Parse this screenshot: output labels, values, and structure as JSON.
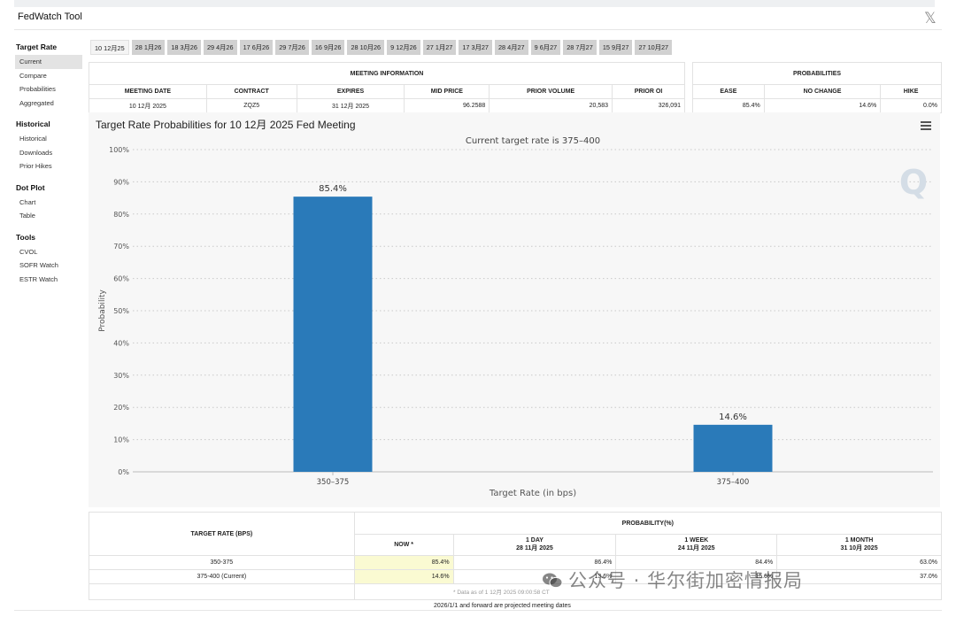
{
  "app": {
    "title": "FedWatch Tool",
    "close_icon": "x-logo-icon"
  },
  "sidebar": [
    {
      "heading": "Target Rate",
      "items": [
        {
          "label": "Current",
          "active": true
        },
        {
          "label": "Compare"
        },
        {
          "label": "Probabilities"
        },
        {
          "label": "Aggregated"
        }
      ]
    },
    {
      "heading": "Historical",
      "items": [
        {
          "label": "Historical"
        },
        {
          "label": "Downloads"
        },
        {
          "label": "Prior Hikes"
        }
      ]
    },
    {
      "heading": "Dot Plot",
      "items": [
        {
          "label": "Chart"
        },
        {
          "label": "Table"
        }
      ]
    },
    {
      "heading": "Tools",
      "items": [
        {
          "label": "CVOL"
        },
        {
          "label": "SOFR Watch"
        },
        {
          "label": "ESTR Watch"
        }
      ]
    }
  ],
  "tabs": [
    "10 12月25",
    "28 1月26",
    "18 3月26",
    "29 4月26",
    "17 6月26",
    "29 7月26",
    "16 9月26",
    "28 10月26",
    "9 12月26",
    "27 1月27",
    "17 3月27",
    "28 4月27",
    "9 6月27",
    "28 7月27",
    "15 9月27",
    "27 10月27"
  ],
  "meeting_info": {
    "section": "MEETING INFORMATION",
    "headers": [
      "MEETING DATE",
      "CONTRACT",
      "EXPIRES",
      "MID PRICE",
      "PRIOR VOLUME",
      "PRIOR OI"
    ],
    "row": [
      "10 12月 2025",
      "ZQZ5",
      "31 12月 2025",
      "96.2588",
      "20,583",
      "326,091"
    ]
  },
  "probabilities": {
    "section": "PROBABILITIES",
    "headers": [
      "EASE",
      "NO CHANGE",
      "HIKE"
    ],
    "row": [
      "85.4%",
      "14.6%",
      "0.0%"
    ]
  },
  "chart_data": {
    "type": "bar",
    "title": "Target Rate Probabilities for 10 12月 2025 Fed Meeting",
    "subtitle": "Current target rate is 375–400",
    "xlabel": "Target Rate (in bps)",
    "ylabel": "Probability",
    "categories": [
      "350–375",
      "375–400"
    ],
    "values": [
      85.4,
      14.6
    ],
    "data_labels": [
      "85.4%",
      "14.6%"
    ],
    "ylim": [
      0,
      100
    ],
    "yticks": [
      "0%",
      "10%",
      "20%",
      "30%",
      "40%",
      "50%",
      "60%",
      "70%",
      "80%",
      "90%",
      "100%"
    ],
    "grid": true,
    "bar_color": "#2a7ab9"
  },
  "bottom_table": {
    "col_header": "TARGET RATE (BPS)",
    "group_header": "PROBABILITY(%)",
    "now": "NOW *",
    "periods": [
      {
        "label": "1 DAY",
        "date": "28 11月 2025"
      },
      {
        "label": "1 WEEK",
        "date": "24 11月 2025"
      },
      {
        "label": "1 MONTH",
        "date": "31 10月 2025"
      }
    ],
    "rows": [
      {
        "rate": "350-375",
        "values": [
          "85.4%",
          "86.4%",
          "84.4%",
          "63.0%"
        ]
      },
      {
        "rate": "375-400 (Current)",
        "values": [
          "14.6%",
          "13.6%",
          "15.6%",
          "37.0%"
        ]
      }
    ],
    "footnote": "* Data as of 1 12月 2025 09:00:58 CT",
    "footer": "2026/1/1 and forward are projected meeting dates"
  },
  "watermark": "公众号 · 华尔街加密情报局"
}
